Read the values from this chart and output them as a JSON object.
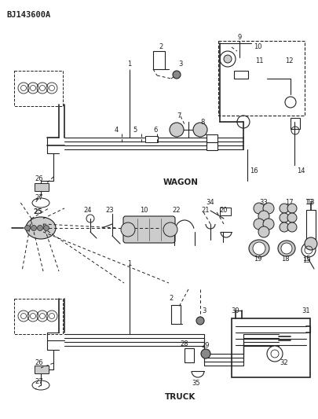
{
  "title": "BJ143600A",
  "bg": "#ffffff",
  "figsize": [
    4.05,
    5.33
  ],
  "dpi": 100,
  "wagon_label": "WAGON",
  "truck_label": "TRUCK",
  "lc": "#222222",
  "gray": "#aaaaaa",
  "lgray": "#cccccc",
  "dgray": "#888888"
}
